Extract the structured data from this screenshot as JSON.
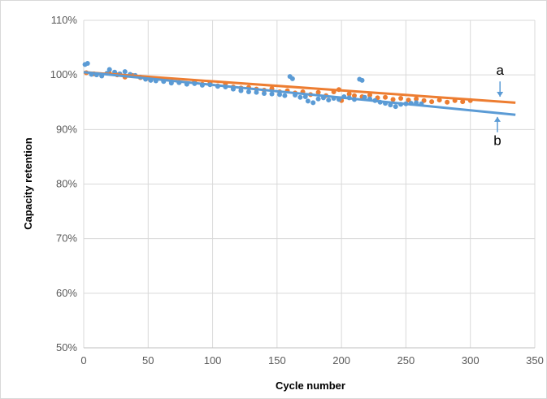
{
  "chart_data": {
    "type": "scatter",
    "xlabel": "Cycle number",
    "ylabel": "Capacity retention",
    "xlim": [
      0,
      350
    ],
    "ylim": [
      50,
      110
    ],
    "x_ticks": [
      0,
      50,
      100,
      150,
      200,
      250,
      300,
      350
    ],
    "y_ticks": [
      50,
      60,
      70,
      80,
      90,
      100,
      110
    ],
    "x_tick_labels": [
      "0",
      "50",
      "100",
      "150",
      "200",
      "250",
      "300",
      "350"
    ],
    "y_tick_labels": [
      "50%",
      "60%",
      "70%",
      "80%",
      "90%",
      "100%",
      "110%"
    ],
    "grid": true,
    "series": [
      {
        "name": "a",
        "color": "#ed7d31",
        "points": [
          [
            2,
            100.4
          ],
          [
            8,
            100.2
          ],
          [
            14,
            99.9
          ],
          [
            20,
            100.3
          ],
          [
            26,
            100.0
          ],
          [
            32,
            99.6
          ],
          [
            38,
            99.9
          ],
          [
            44,
            99.5
          ],
          [
            50,
            99.4
          ],
          [
            56,
            99.0
          ],
          [
            62,
            98.9
          ],
          [
            68,
            98.7
          ],
          [
            74,
            98.6
          ],
          [
            80,
            98.4
          ],
          [
            86,
            98.8
          ],
          [
            92,
            98.3
          ],
          [
            98,
            98.5
          ],
          [
            104,
            98.0
          ],
          [
            110,
            98.4
          ],
          [
            116,
            97.8
          ],
          [
            122,
            97.6
          ],
          [
            128,
            97.7
          ],
          [
            134,
            97.4
          ],
          [
            140,
            97.2
          ],
          [
            146,
            97.5
          ],
          [
            152,
            96.9
          ],
          [
            158,
            97.1
          ],
          [
            164,
            96.7
          ],
          [
            170,
            96.9
          ],
          [
            176,
            96.4
          ],
          [
            182,
            96.8
          ],
          [
            188,
            96.2
          ],
          [
            194,
            96.9
          ],
          [
            198,
            97.3
          ],
          [
            200,
            95.3
          ],
          [
            206,
            96.5
          ],
          [
            210,
            96.2
          ],
          [
            216,
            96.0
          ],
          [
            222,
            96.3
          ],
          [
            228,
            95.8
          ],
          [
            234,
            95.9
          ],
          [
            240,
            95.5
          ],
          [
            246,
            95.7
          ],
          [
            252,
            95.4
          ],
          [
            258,
            95.6
          ],
          [
            264,
            95.3
          ],
          [
            270,
            95.1
          ],
          [
            276,
            95.4
          ],
          [
            282,
            95.0
          ],
          [
            288,
            95.3
          ],
          [
            294,
            95.1
          ],
          [
            300,
            95.3
          ]
        ],
        "trendline": {
          "x": [
            0,
            335
          ],
          "y": [
            100.5,
            94.9
          ]
        }
      },
      {
        "name": "b",
        "color": "#5b9bd5",
        "points": [
          [
            1,
            101.9
          ],
          [
            3,
            102.1
          ],
          [
            6,
            100.1
          ],
          [
            10,
            100.0
          ],
          [
            14,
            99.8
          ],
          [
            18,
            100.3
          ],
          [
            20,
            101.0
          ],
          [
            24,
            100.5
          ],
          [
            28,
            100.2
          ],
          [
            32,
            100.6
          ],
          [
            36,
            100.1
          ],
          [
            40,
            99.9
          ],
          [
            44,
            99.6
          ],
          [
            48,
            99.2
          ],
          [
            52,
            99.0
          ],
          [
            56,
            98.9
          ],
          [
            62,
            98.8
          ],
          [
            68,
            98.5
          ],
          [
            74,
            98.6
          ],
          [
            80,
            98.3
          ],
          [
            86,
            98.4
          ],
          [
            92,
            98.1
          ],
          [
            98,
            98.2
          ],
          [
            104,
            97.9
          ],
          [
            110,
            97.8
          ],
          [
            116,
            97.4
          ],
          [
            122,
            97.1
          ],
          [
            128,
            96.9
          ],
          [
            134,
            96.8
          ],
          [
            140,
            96.6
          ],
          [
            146,
            96.5
          ],
          [
            152,
            96.4
          ],
          [
            156,
            96.2
          ],
          [
            160,
            99.7
          ],
          [
            162,
            99.3
          ],
          [
            164,
            96.3
          ],
          [
            168,
            95.9
          ],
          [
            172,
            96.0
          ],
          [
            174,
            95.2
          ],
          [
            178,
            94.9
          ],
          [
            182,
            95.6
          ],
          [
            186,
            95.8
          ],
          [
            190,
            95.4
          ],
          [
            194,
            95.7
          ],
          [
            198,
            95.5
          ],
          [
            202,
            96.0
          ],
          [
            206,
            95.8
          ],
          [
            210,
            95.5
          ],
          [
            214,
            99.2
          ],
          [
            216,
            99.0
          ],
          [
            218,
            95.9
          ],
          [
            222,
            95.6
          ],
          [
            226,
            95.3
          ],
          [
            230,
            95.0
          ],
          [
            234,
            94.8
          ],
          [
            238,
            94.5
          ],
          [
            242,
            94.2
          ],
          [
            246,
            94.6
          ],
          [
            250,
            94.7
          ],
          [
            254,
            94.8
          ],
          [
            258,
            94.9
          ],
          [
            262,
            94.7
          ]
        ],
        "trendline": {
          "x": [
            0,
            335
          ],
          "y": [
            100.5,
            92.7
          ]
        }
      }
    ],
    "annotations": [
      {
        "text": "a",
        "x": 323,
        "y": 98.8,
        "arrow_to": [
          323,
          96.0
        ],
        "arrow_dir": "down"
      },
      {
        "text": "b",
        "x": 321,
        "y": 89.5,
        "arrow_to": [
          321,
          92.3
        ],
        "arrow_dir": "up"
      }
    ]
  }
}
